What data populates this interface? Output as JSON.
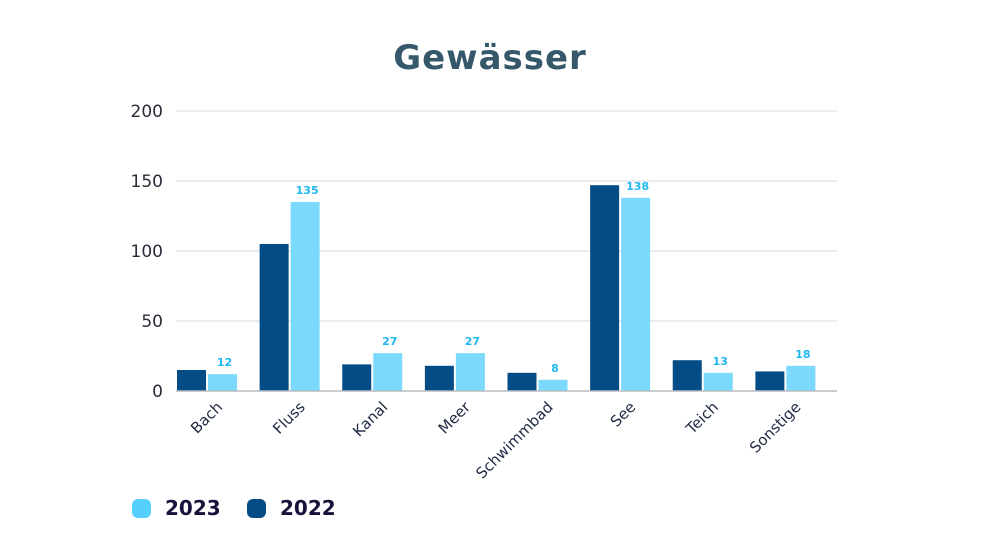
{
  "chart_data": {
    "type": "bar",
    "title": "Gewässer",
    "xlabel": "",
    "ylabel": "",
    "ylim": [
      0,
      200
    ],
    "yticks": [
      "0",
      "50",
      "100",
      "150",
      "200"
    ],
    "grid": true,
    "categories": [
      "Bach",
      "Fluss",
      "Kanal",
      "Meer",
      "Schwimmbad",
      "See",
      "Teich",
      "Sonstige"
    ],
    "series": [
      {
        "name": "2022",
        "color": "#044c86",
        "values": [
          15,
          105,
          19,
          18,
          13,
          147,
          22,
          14
        ],
        "show_labels": false
      },
      {
        "name": "2023",
        "color": "#7ad9fc",
        "values": [
          12,
          135,
          27,
          27,
          8,
          138,
          13,
          18
        ],
        "show_labels": true,
        "label_color": "#1fb7f0"
      }
    ],
    "legend": {
      "position": "bottom-left",
      "items": [
        {
          "label": "2023",
          "color": "#55d0fc"
        },
        {
          "label": "2022",
          "color": "#044c86"
        }
      ]
    }
  }
}
